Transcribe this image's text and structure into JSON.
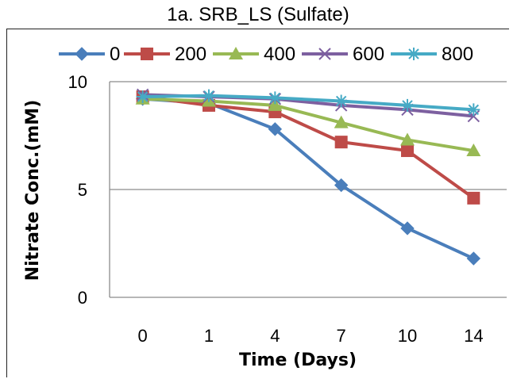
{
  "chart_data": {
    "type": "line",
    "title": "1a. SRB_LS (Sulfate)",
    "xlabel": "Time (Days)",
    "ylabel": "Nitrate Conc.(mM)",
    "categories": [
      "0",
      "1",
      "4",
      "7",
      "10",
      "14"
    ],
    "ylim": [
      0,
      10
    ],
    "yticks": [
      "0",
      "5",
      "10"
    ],
    "grid": "horizontal",
    "legend_position": "top",
    "series": [
      {
        "name": "0",
        "values": [
          9.2,
          9.0,
          7.8,
          5.2,
          3.2,
          1.8
        ],
        "color": "#4A7EBB",
        "marker": "diamond"
      },
      {
        "name": "200",
        "values": [
          9.3,
          8.9,
          8.6,
          7.2,
          6.8,
          4.6
        ],
        "color": "#BE4B48",
        "marker": "square"
      },
      {
        "name": "400",
        "values": [
          9.2,
          9.1,
          8.9,
          8.1,
          7.3,
          6.8
        ],
        "color": "#98B954",
        "marker": "triangle"
      },
      {
        "name": "600",
        "values": [
          9.4,
          9.3,
          9.2,
          8.9,
          8.7,
          8.4
        ],
        "color": "#7D60A0",
        "marker": "x"
      },
      {
        "name": "800",
        "values": [
          9.3,
          9.35,
          9.25,
          9.1,
          8.9,
          8.7
        ],
        "color": "#46AAC5",
        "marker": "star"
      }
    ]
  }
}
